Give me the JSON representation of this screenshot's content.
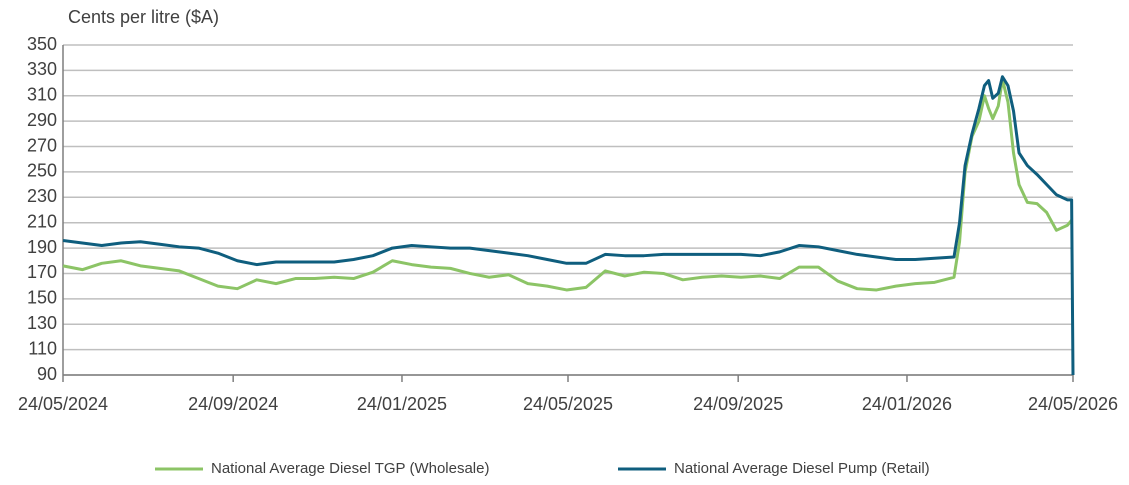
{
  "chart_data": {
    "type": "line",
    "y_label": "Cents per litre ($A)",
    "x": [
      "24/05/2024",
      "07/06/2024",
      "21/06/2024",
      "05/07/2024",
      "19/07/2024",
      "02/08/2024",
      "16/08/2024",
      "30/08/2024",
      "13/09/2024",
      "27/09/2024",
      "11/10/2024",
      "25/10/2024",
      "08/11/2024",
      "22/11/2024",
      "06/12/2024",
      "20/12/2024",
      "03/01/2025",
      "17/01/2025",
      "31/01/2025",
      "14/02/2025",
      "28/02/2025",
      "14/03/2025",
      "28/03/2025",
      "11/04/2025",
      "25/04/2025",
      "09/05/2025",
      "23/05/2025",
      "06/06/2025",
      "20/06/2025",
      "04/07/2025",
      "18/07/2025",
      "01/08/2025",
      "15/08/2025",
      "29/08/2025",
      "12/09/2025",
      "26/09/2025",
      "10/10/2025",
      "24/10/2025",
      "07/11/2025",
      "21/11/2025",
      "05/12/2025",
      "19/12/2025",
      "02/01/2026",
      "16/01/2026",
      "30/01/2026",
      "13/02/2026",
      "27/02/2026",
      "03/03/2026",
      "07/03/2026",
      "12/03/2026",
      "17/03/2026",
      "21/03/2026",
      "24/03/2026",
      "27/03/2026",
      "31/03/2026",
      "03/04/2026",
      "07/04/2026",
      "11/04/2026",
      "15/04/2026",
      "21/04/2026",
      "28/04/2026",
      "05/05/2026",
      "12/05/2026",
      "20/05/2026",
      "23/05/2026",
      "24/05/2026"
    ],
    "series": [
      {
        "name": "National Average Diesel TGP (Wholesale)",
        "color": "#8cc466",
        "values": [
          176,
          173,
          178,
          180,
          176,
          174,
          172,
          166,
          160,
          158,
          165,
          162,
          166,
          166,
          167,
          166,
          171,
          180,
          177,
          175,
          174,
          170,
          167,
          169,
          162,
          160,
          157,
          159,
          172,
          168,
          171,
          170,
          165,
          167,
          168,
          167,
          168,
          166,
          175,
          175,
          164,
          158,
          157,
          160,
          162,
          163,
          167,
          195,
          250,
          278,
          290,
          310,
          300,
          292,
          302,
          323,
          305,
          265,
          240,
          226,
          225,
          218,
          204,
          208,
          212,
          212
        ]
      },
      {
        "name": "National Average Diesel Pump (Retail)",
        "color": "#0f5e7e",
        "values": [
          196,
          194,
          192,
          194,
          195,
          193,
          191,
          190,
          186,
          180,
          177,
          179,
          179,
          179,
          179,
          181,
          184,
          190,
          192,
          191,
          190,
          190,
          188,
          186,
          184,
          181,
          178,
          178,
          185,
          184,
          184,
          185,
          185,
          185,
          185,
          185,
          184,
          187,
          192,
          191,
          188,
          185,
          183,
          181,
          181,
          182,
          183,
          210,
          255,
          280,
          300,
          318,
          322,
          308,
          312,
          325,
          318,
          298,
          265,
          255,
          248,
          240,
          232,
          228,
          228,
          90
        ]
      }
    ],
    "xlim": [
      "24/05/2024",
      "24/05/2026"
    ],
    "xticks": [
      "24/05/2024",
      "24/09/2024",
      "24/01/2025",
      "24/05/2025",
      "24/09/2025",
      "24/01/2026",
      "24/05/2026"
    ],
    "ylim": [
      90,
      350
    ],
    "yticks": [
      90,
      110,
      130,
      150,
      170,
      190,
      210,
      230,
      250,
      270,
      290,
      310,
      330,
      350
    ],
    "grid": true,
    "legend": "bottom"
  }
}
